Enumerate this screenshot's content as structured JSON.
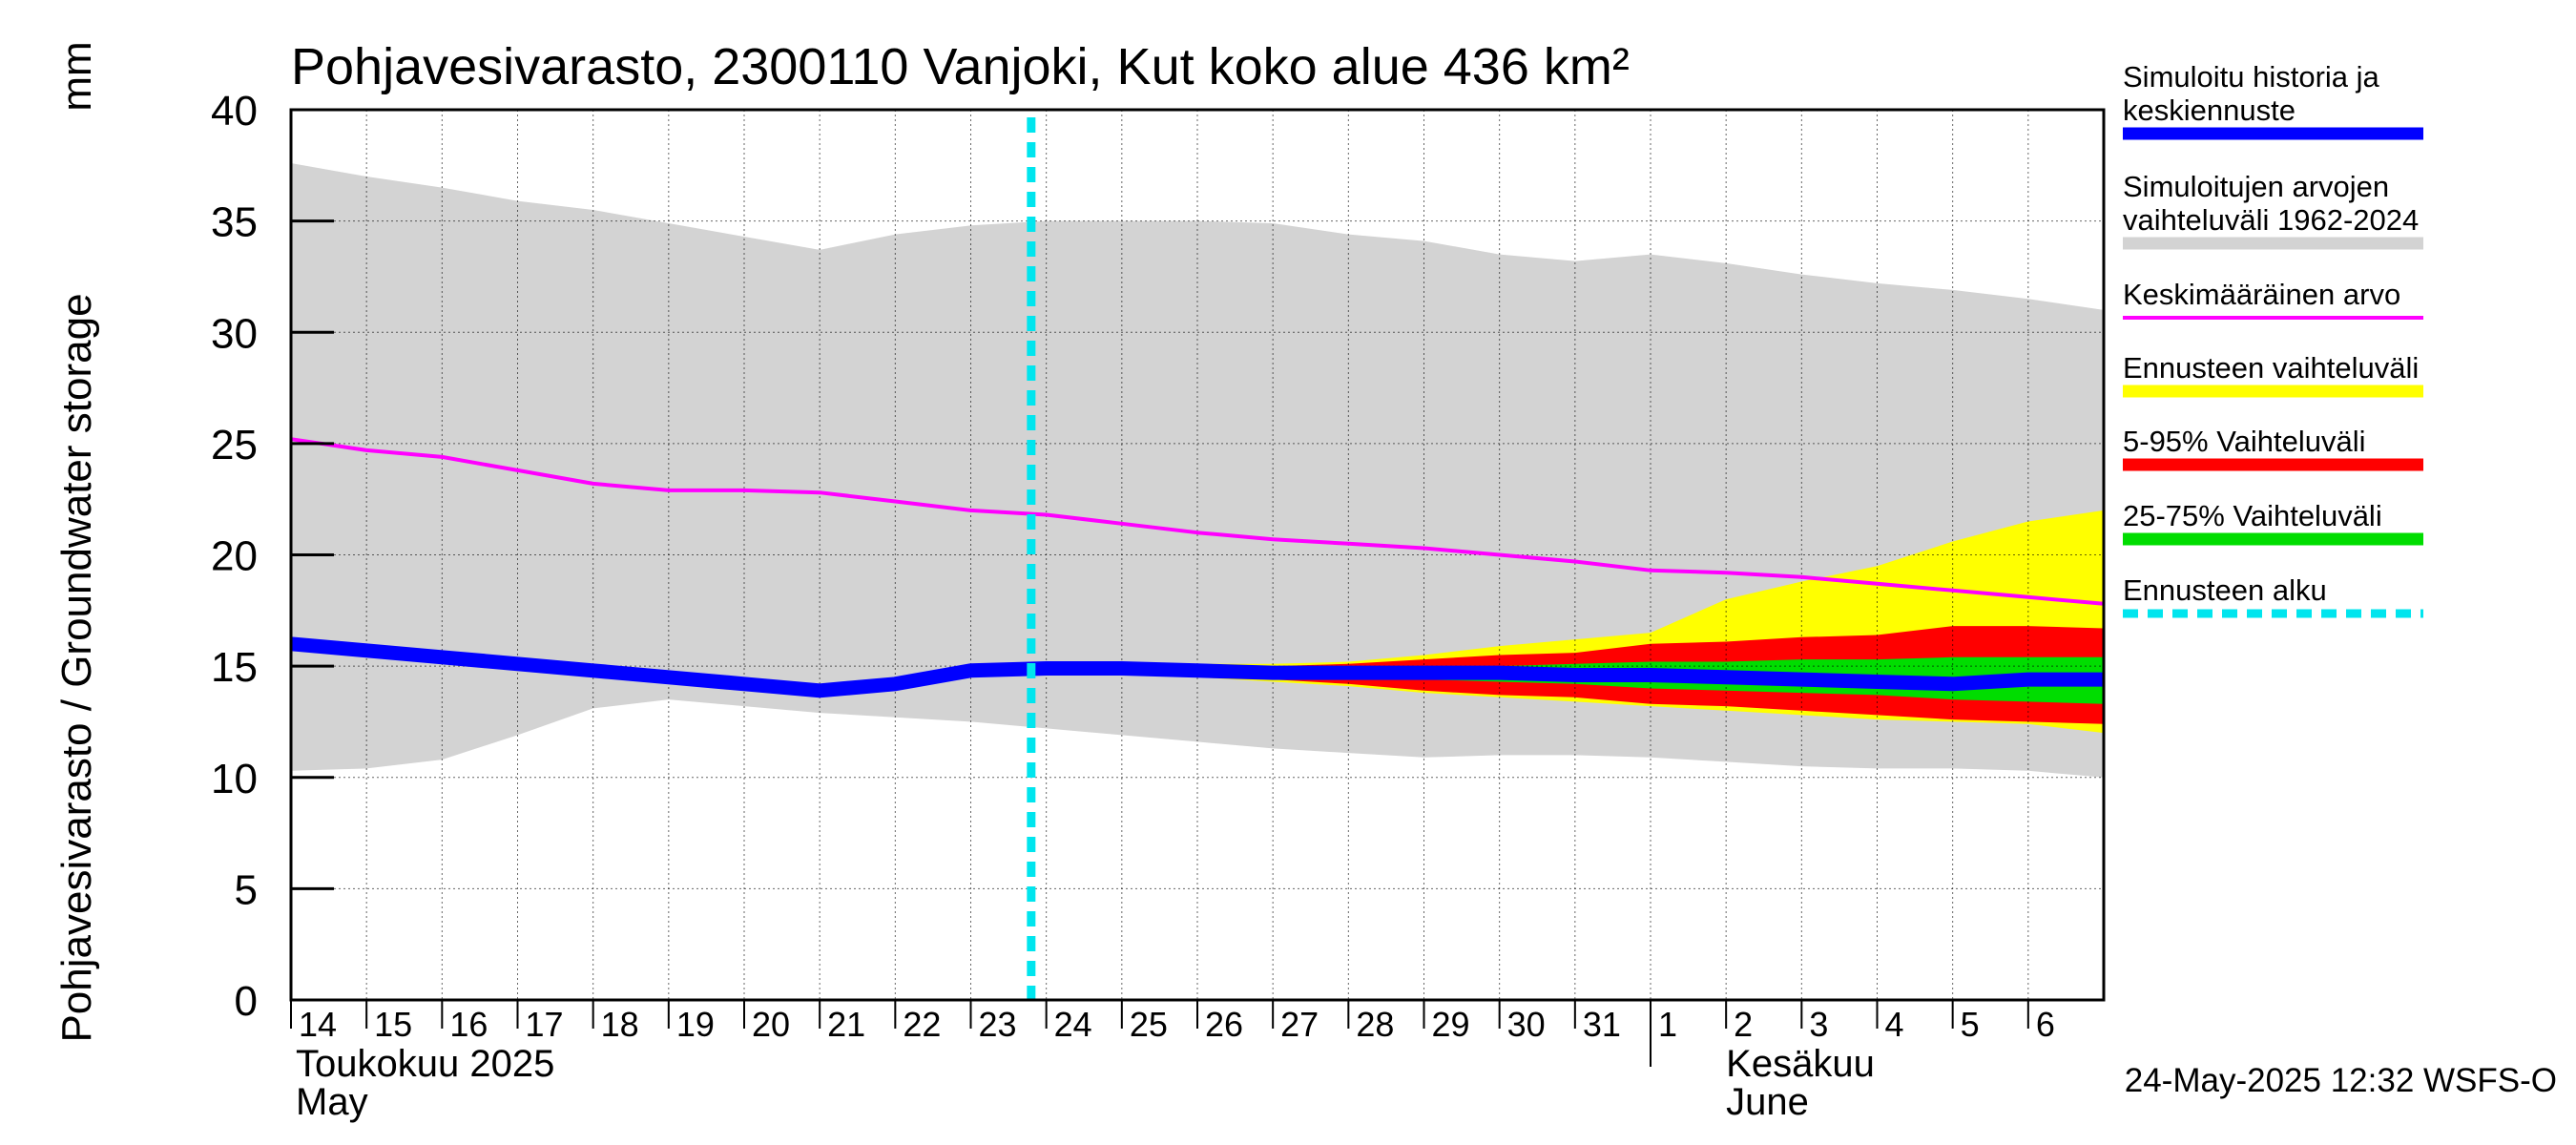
{
  "chart_data": {
    "type": "area",
    "title": "Pohjavesivarasto, 2300110 Vanjoki, Kut koko alue 436 km²",
    "ylabel": "Pohjavesivarasto / Groundwater storage",
    "yunit": "mm",
    "ylim": [
      0,
      40
    ],
    "yticks": [
      0,
      5,
      10,
      15,
      20,
      25,
      30,
      35,
      40
    ],
    "grid": true,
    "legend_position": "right",
    "x_day_labels": [
      "14",
      "15",
      "16",
      "17",
      "18",
      "19",
      "20",
      "21",
      "22",
      "23",
      "24",
      "25",
      "26",
      "27",
      "28",
      "29",
      "30",
      "31",
      "1",
      "2",
      "3",
      "4",
      "5",
      "6"
    ],
    "month_labels": [
      {
        "fi": "Toukokuu  2025",
        "en": "May"
      },
      {
        "fi": "Kesäkuu",
        "en": "June"
      }
    ],
    "forecast_start_index": 9.8,
    "x": [
      0,
      1,
      2,
      3,
      4,
      5,
      6,
      7,
      8,
      9,
      10,
      11,
      12,
      13,
      14,
      15,
      16,
      17,
      18,
      19,
      20,
      21,
      22,
      23,
      24
    ],
    "series": [
      {
        "name": "Simuloitu historia ja keskiennuste",
        "color": "#0000ff",
        "values": [
          16.0,
          15.7,
          15.4,
          15.1,
          14.8,
          14.5,
          14.2,
          13.9,
          14.2,
          14.8,
          14.9,
          14.9,
          14.8,
          14.7,
          14.7,
          14.7,
          14.7,
          14.6,
          14.6,
          14.5,
          14.4,
          14.3,
          14.2,
          14.4,
          14.4
        ]
      },
      {
        "name": "Keskimääräinen arvo",
        "color": "#ff00ff",
        "values": [
          25.2,
          24.7,
          24.4,
          23.8,
          23.2,
          22.9,
          22.9,
          22.8,
          22.4,
          22.0,
          21.8,
          21.4,
          21.0,
          20.7,
          20.5,
          20.3,
          20.0,
          19.7,
          19.3,
          19.2,
          19.0,
          18.7,
          18.4,
          18.1,
          17.8
        ]
      }
    ],
    "bands": [
      {
        "name": "Simuloitujen arvojen vaihteluväli 1962-2024",
        "color": "#d3d3d3",
        "upper": [
          37.6,
          37.0,
          36.5,
          35.9,
          35.5,
          34.9,
          34.3,
          33.7,
          34.4,
          34.8,
          35.0,
          35.0,
          35.0,
          34.9,
          34.4,
          34.1,
          33.5,
          33.2,
          33.5,
          33.1,
          32.6,
          32.2,
          31.9,
          31.5,
          31.0
        ],
        "lower": [
          10.3,
          10.4,
          10.8,
          11.9,
          13.1,
          13.5,
          13.2,
          12.9,
          12.7,
          12.5,
          12.2,
          11.9,
          11.6,
          11.3,
          11.1,
          10.9,
          11.0,
          11.0,
          10.9,
          10.7,
          10.5,
          10.4,
          10.4,
          10.3,
          10.0
        ]
      },
      {
        "name": "Ennusteen vaihteluväli",
        "color": "#ffff00",
        "upper": [
          null,
          null,
          null,
          null,
          null,
          null,
          null,
          null,
          null,
          null,
          14.9,
          15.1,
          15.1,
          15.1,
          15.2,
          15.5,
          15.9,
          16.2,
          16.5,
          18.0,
          18.8,
          19.5,
          20.6,
          21.5,
          22.0
        ],
        "lower": [
          null,
          null,
          null,
          null,
          null,
          null,
          null,
          null,
          null,
          null,
          14.9,
          14.7,
          14.5,
          14.3,
          14.1,
          13.8,
          13.6,
          13.4,
          13.2,
          13.0,
          12.8,
          12.6,
          12.5,
          12.4,
          12.0
        ]
      },
      {
        "name": "5-95% Vaihteluväli",
        "color": "#ff0000",
        "upper": [
          null,
          null,
          null,
          null,
          null,
          null,
          null,
          null,
          null,
          null,
          14.9,
          15.0,
          15.0,
          15.0,
          15.1,
          15.3,
          15.5,
          15.6,
          16.0,
          16.1,
          16.3,
          16.4,
          16.8,
          16.8,
          16.7
        ],
        "lower": [
          null,
          null,
          null,
          null,
          null,
          null,
          null,
          null,
          null,
          null,
          14.9,
          14.8,
          14.6,
          14.4,
          14.2,
          13.9,
          13.7,
          13.6,
          13.3,
          13.2,
          13.0,
          12.8,
          12.6,
          12.5,
          12.4
        ]
      },
      {
        "name": "25-75% Vaihteluväli",
        "color": "#00dd00",
        "upper": [
          null,
          null,
          null,
          null,
          null,
          null,
          null,
          null,
          null,
          null,
          14.9,
          14.9,
          14.9,
          14.9,
          14.9,
          15.0,
          15.0,
          15.1,
          15.2,
          15.2,
          15.3,
          15.3,
          15.4,
          15.4,
          15.4
        ],
        "lower": [
          null,
          null,
          null,
          null,
          null,
          null,
          null,
          null,
          null,
          null,
          14.9,
          14.8,
          14.7,
          14.6,
          14.5,
          14.4,
          14.3,
          14.2,
          14.0,
          13.9,
          13.8,
          13.7,
          13.5,
          13.4,
          13.3
        ]
      }
    ],
    "legend": [
      {
        "label": "Simuloitu historia ja keskiennuste",
        "color": "#0000ff",
        "style": "solid"
      },
      {
        "label": "Simuloitujen arvojen vaihteluväli 1962-2024",
        "color": "#d3d3d3",
        "style": "solid"
      },
      {
        "label": "Keskimääräinen arvo",
        "color": "#ff00ff",
        "style": "thin"
      },
      {
        "label": "Ennusteen vaihteluväli",
        "color": "#ffff00",
        "style": "solid"
      },
      {
        "label": "5-95% Vaihteluväli",
        "color": "#ff0000",
        "style": "solid"
      },
      {
        "label": "25-75% Vaihteluväli",
        "color": "#00dd00",
        "style": "solid"
      },
      {
        "label": "Ennusteen alku",
        "color": "#00e5ee",
        "style": "dashed"
      }
    ],
    "timestamp": "24-May-2025 12:32 WSFS-O"
  }
}
